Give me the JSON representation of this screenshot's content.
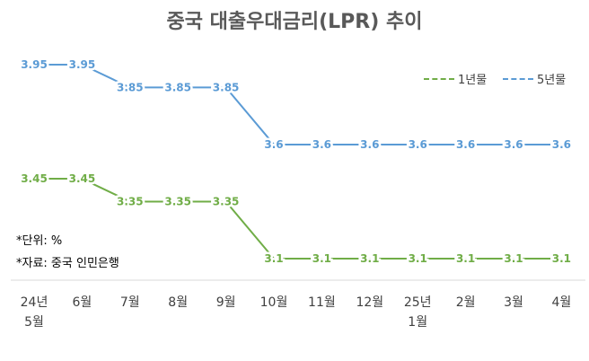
{
  "chart_data": {
    "type": "line",
    "title": "중국 대출우대금리(LPR) 추이",
    "categories": [
      "24년\n5월",
      "6월",
      "7월",
      "8월",
      "9월",
      "10월",
      "11월",
      "12월",
      "25년\n1월",
      "2월",
      "3월",
      "4월"
    ],
    "series": [
      {
        "name": "1년물",
        "color": "#70AD47",
        "values": [
          3.45,
          3.45,
          3.35,
          3.35,
          3.35,
          3.1,
          3.1,
          3.1,
          3.1,
          3.1,
          3.1,
          3.1
        ]
      },
      {
        "name": "5년물",
        "color": "#5B9BD5",
        "values": [
          3.95,
          3.95,
          3.85,
          3.85,
          3.85,
          3.6,
          3.6,
          3.6,
          3.6,
          3.6,
          3.6,
          3.6
        ]
      }
    ],
    "data_labels": [
      [
        "3.45",
        "3.45",
        "3.35",
        "3.35",
        "3.35",
        "3.1",
        "3.1",
        "3.1",
        "3.1",
        "3.1",
        "3.1",
        "3.1"
      ],
      [
        "3.95",
        "3.95",
        "3.85",
        "3.85",
        "3.85",
        "3.6",
        "3.6",
        "3.6",
        "3.6",
        "3.6",
        "3.6",
        "3.6"
      ]
    ],
    "legend": "top-right",
    "grid": false
  },
  "notes": {
    "unit": "*단위: %",
    "source": "*자료: 중국 인민은행"
  }
}
